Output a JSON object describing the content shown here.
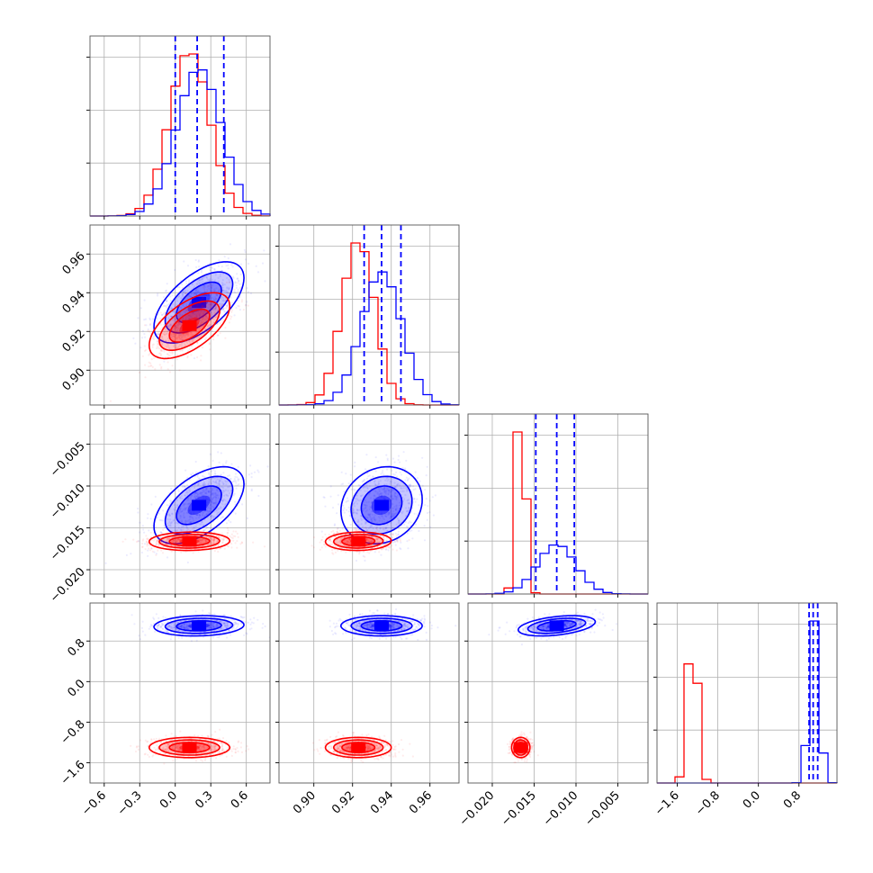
{
  "chart_data": {
    "type": "corner",
    "params": [
      {
        "range": [
          -0.72,
          0.8
        ],
        "ticks": [
          "−0.6",
          "−0.3",
          "0.0",
          "0.3",
          "0.6"
        ],
        "tick_values": [
          -0.6,
          -0.3,
          0.0,
          0.3,
          0.6
        ]
      },
      {
        "range": [
          0.882,
          0.975
        ],
        "ticks": [
          "0.90",
          "0.92",
          "0.94",
          "0.96"
        ],
        "tick_values": [
          0.9,
          0.92,
          0.94,
          0.96
        ]
      },
      {
        "range": [
          -0.0229,
          -0.0014
        ],
        "ticks": [
          "−0.020",
          "−0.015",
          "−0.010",
          "−0.005"
        ],
        "tick_values": [
          -0.02,
          -0.015,
          -0.01,
          -0.005
        ]
      },
      {
        "range": [
          -2.0,
          1.55
        ],
        "ticks": [
          "−1.6",
          "−0.8",
          "0.0",
          "0.8"
        ],
        "tick_values": [
          -1.6,
          -0.8,
          0.0,
          0.8
        ]
      }
    ],
    "series": [
      {
        "color": "#0000ff",
        "means": [
          0.2,
          0.935,
          -0.0123,
          1.1
        ],
        "sigmas": [
          0.19,
          0.0105,
          0.0023,
          0.1
        ],
        "quantiles": [
          [
            0.0,
            0.185,
            0.41
          ],
          [
            0.926,
            0.935,
            0.945
          ],
          [
            -0.0148,
            -0.0123,
            -0.0102
          ],
          [
            1.0,
            1.08,
            1.17
          ]
        ],
        "correlations": [
          [
            0,
            1,
            0.6
          ],
          [
            0,
            2,
            0.55
          ],
          [
            1,
            2,
            0.15
          ],
          [
            0,
            3,
            0.1
          ],
          [
            1,
            3,
            0.0
          ],
          [
            2,
            3,
            0.4
          ]
        ]
      },
      {
        "color": "#ff0000",
        "means": [
          0.12,
          0.923,
          -0.0166,
          -1.3
        ],
        "sigmas": [
          0.17,
          0.0085,
          0.00055,
          0.1
        ],
        "quantiles": [],
        "correlations": [
          [
            0,
            1,
            0.6
          ],
          [
            0,
            2,
            0.05
          ],
          [
            1,
            2,
            0.05
          ],
          [
            0,
            3,
            0.0
          ],
          [
            1,
            3,
            0.0
          ],
          [
            2,
            3,
            0.0
          ]
        ]
      }
    ]
  }
}
